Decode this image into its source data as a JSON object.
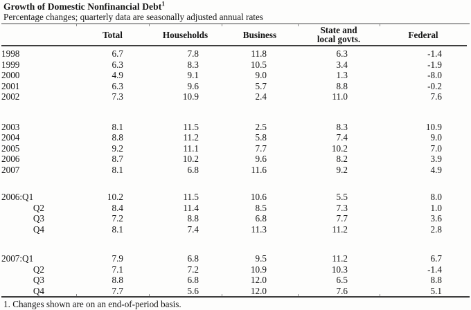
{
  "title": {
    "text": "Growth of Domestic Nonfinancial Debt",
    "footnote_marker": "1"
  },
  "subtitle": "Percentage changes; quarterly data are seasonally adjusted annual rates",
  "table": {
    "columns": [
      "Total",
      "Households",
      "Business",
      "State and\nlocal govts.",
      "Federal"
    ],
    "sections": [
      {
        "gap_before": 0,
        "rows": [
          {
            "label": "1998",
            "indent": false,
            "values": [
              "6.7",
              "7.8",
              "11.8",
              "6.3",
              "-1.4"
            ]
          },
          {
            "label": "1999",
            "indent": false,
            "values": [
              "6.3",
              "8.3",
              "10.5",
              "3.4",
              "-1.9"
            ]
          },
          {
            "label": "2000",
            "indent": false,
            "values": [
              "4.9",
              "9.1",
              "9.0",
              "1.3",
              "-8.0"
            ]
          },
          {
            "label": "2001",
            "indent": false,
            "values": [
              "6.3",
              "9.6",
              "5.7",
              "8.8",
              "-0.2"
            ]
          },
          {
            "label": "2002",
            "indent": false,
            "values": [
              "7.3",
              "10.9",
              "2.4",
              "11.0",
              "7.6"
            ]
          }
        ]
      },
      {
        "gap_before": 28,
        "rows": [
          {
            "label": "2003",
            "indent": false,
            "values": [
              "8.1",
              "11.5",
              "2.5",
              "8.3",
              "10.9"
            ]
          },
          {
            "label": "2004",
            "indent": false,
            "values": [
              "8.8",
              "11.2",
              "5.8",
              "7.4",
              "9.0"
            ]
          },
          {
            "label": "2005",
            "indent": false,
            "values": [
              "9.2",
              "11.1",
              "7.7",
              "10.2",
              "7.0"
            ]
          },
          {
            "label": "2006",
            "indent": false,
            "values": [
              "8.7",
              "10.2",
              "9.6",
              "8.2",
              "3.9"
            ]
          },
          {
            "label": "2007",
            "indent": false,
            "values": [
              "8.1",
              "6.8",
              "11.6",
              "9.2",
              "4.9"
            ]
          }
        ]
      },
      {
        "gap_before": 24,
        "rows": [
          {
            "label": "2006:Q1",
            "indent": false,
            "values": [
              "10.2",
              "11.5",
              "10.6",
              "5.5",
              "8.0"
            ]
          },
          {
            "label": "Q2",
            "indent": true,
            "values": [
              "8.4",
              "11.4",
              "8.5",
              "7.3",
              "1.0"
            ]
          },
          {
            "label": "Q3",
            "indent": true,
            "values": [
              "7.2",
              "8.8",
              "6.8",
              "7.7",
              "3.6"
            ]
          },
          {
            "label": "Q4",
            "indent": true,
            "values": [
              "8.1",
              "7.4",
              "11.3",
              "11.2",
              "2.8"
            ]
          }
        ]
      },
      {
        "gap_before": 27,
        "rows": [
          {
            "label": "2007:Q1",
            "indent": false,
            "values": [
              "7.9",
              "6.8",
              "9.5",
              "11.2",
              "6.7"
            ]
          },
          {
            "label": "Q2",
            "indent": true,
            "values": [
              "7.1",
              "7.2",
              "10.9",
              "10.3",
              "-1.4"
            ]
          },
          {
            "label": "Q3",
            "indent": true,
            "values": [
              "8.8",
              "6.8",
              "12.0",
              "6.5",
              "8.8"
            ]
          },
          {
            "label": "Q4",
            "indent": true,
            "values": [
              "7.7",
              "5.6",
              "12.0",
              "7.6",
              "5.1"
            ]
          }
        ]
      }
    ]
  },
  "footnote": "1. Changes shown are on an end-of-period basis."
}
